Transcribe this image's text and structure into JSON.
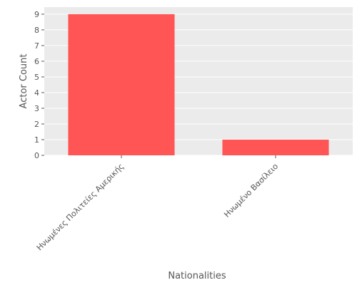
{
  "chart_data": {
    "type": "bar",
    "title": "",
    "xlabel": "Nationalities",
    "ylabel": "Actor Count",
    "categories": [
      "Ηνωμένες Πολιτείες Αμερικής",
      "Ηνωμένο Βασίλειο"
    ],
    "values": [
      9,
      1
    ],
    "ylim": [
      0,
      9.45
    ],
    "yticks": [
      "0",
      "1",
      "2",
      "3",
      "4",
      "5",
      "6",
      "7",
      "8",
      "9"
    ],
    "grid": true,
    "legend": "none",
    "colors": {
      "bar": "#ff5555",
      "panel": "#ebebeb",
      "grid": "#ffffff",
      "text": "#555555"
    }
  }
}
